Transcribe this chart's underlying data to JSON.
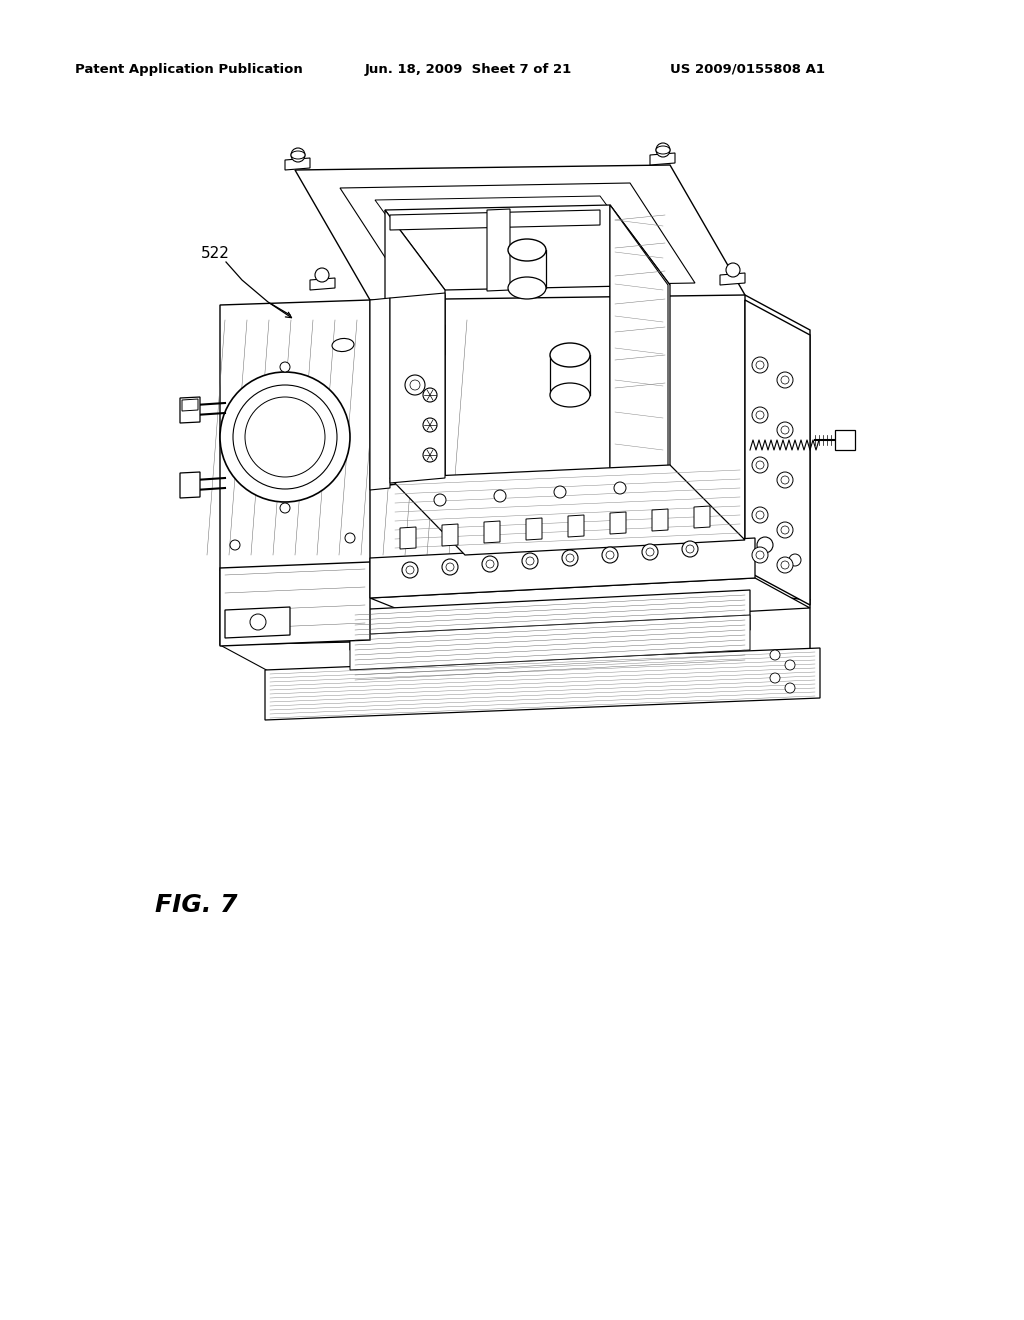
{
  "header_left": "Patent Application Publication",
  "header_mid": "Jun. 18, 2009  Sheet 7 of 21",
  "header_right": "US 2009/0155808 A1",
  "fig_label": "FIG. 7",
  "part_label": "522",
  "bg_color": "#ffffff",
  "line_color": "#000000",
  "text_color": "#000000",
  "header_fontsize": 9.5,
  "fig_label_fontsize": 18,
  "part_label_fontsize": 11
}
